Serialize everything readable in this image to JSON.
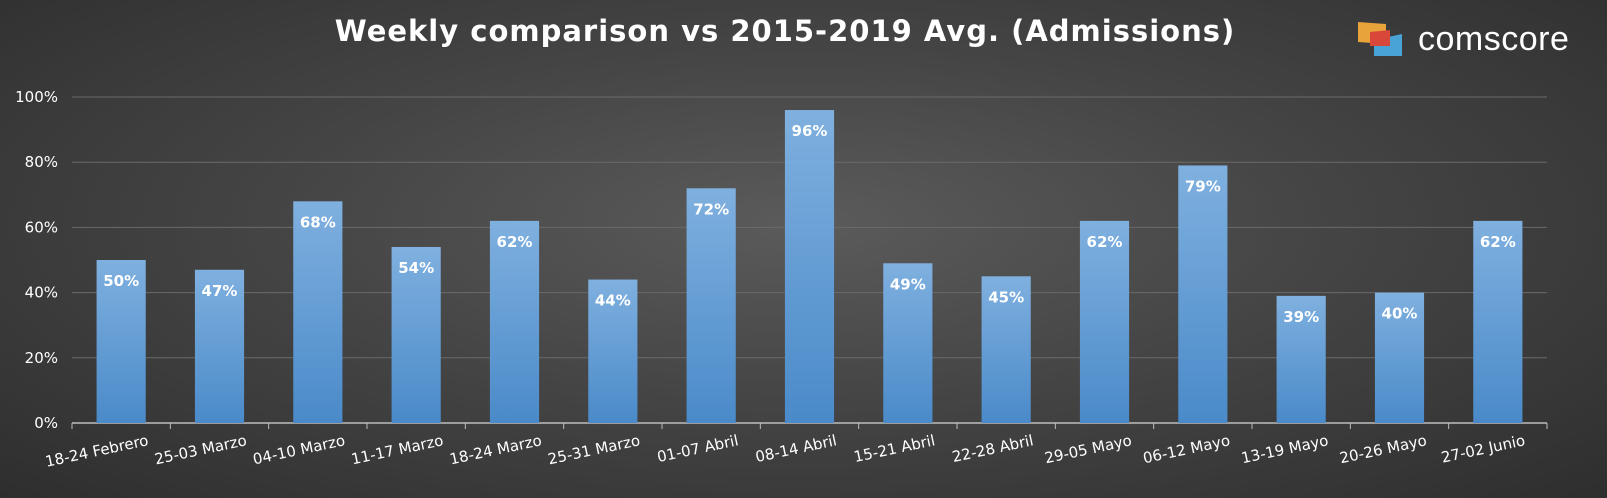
{
  "chart_data": {
    "type": "bar",
    "title": "Weekly comparison vs 2015-2019 Avg. (Admissions)",
    "categories": [
      "18-24 Febrero",
      "25-03 Marzo",
      "04-10 Marzo",
      "11-17 Marzo",
      "18-24 Marzo",
      "25-31 Marzo",
      "01-07 Abril",
      "08-14 Abril",
      "15-21 Abril",
      "22-28 Abril",
      "29-05 Mayo",
      "06-12 Mayo",
      "13-19 Mayo",
      "20-26 Mayo",
      "27-02 Junio"
    ],
    "values": [
      50,
      47,
      68,
      54,
      62,
      44,
      72,
      96,
      49,
      45,
      62,
      79,
      39,
      40,
      62
    ],
    "data_labels": [
      "50%",
      "47%",
      "68%",
      "54%",
      "62%",
      "44%",
      "72%",
      "96%",
      "49%",
      "45%",
      "62%",
      "79%",
      "39%",
      "40%",
      "62%"
    ],
    "y_ticks": [
      0,
      20,
      40,
      60,
      80,
      100
    ],
    "y_tick_labels": [
      "0%",
      "20%",
      "40%",
      "60%",
      "80%",
      "100%"
    ],
    "ylim": [
      0,
      100
    ],
    "grid": true,
    "bar_color_top": "#7fb0df",
    "bar_color_bottom": "#4a8ac9",
    "text_color": "#ffffff"
  },
  "brand": {
    "name": "comscore",
    "logo_icon": "comscore-logo-icon",
    "colors": [
      "#e8a33a",
      "#d9463a",
      "#4aa3d6"
    ]
  }
}
